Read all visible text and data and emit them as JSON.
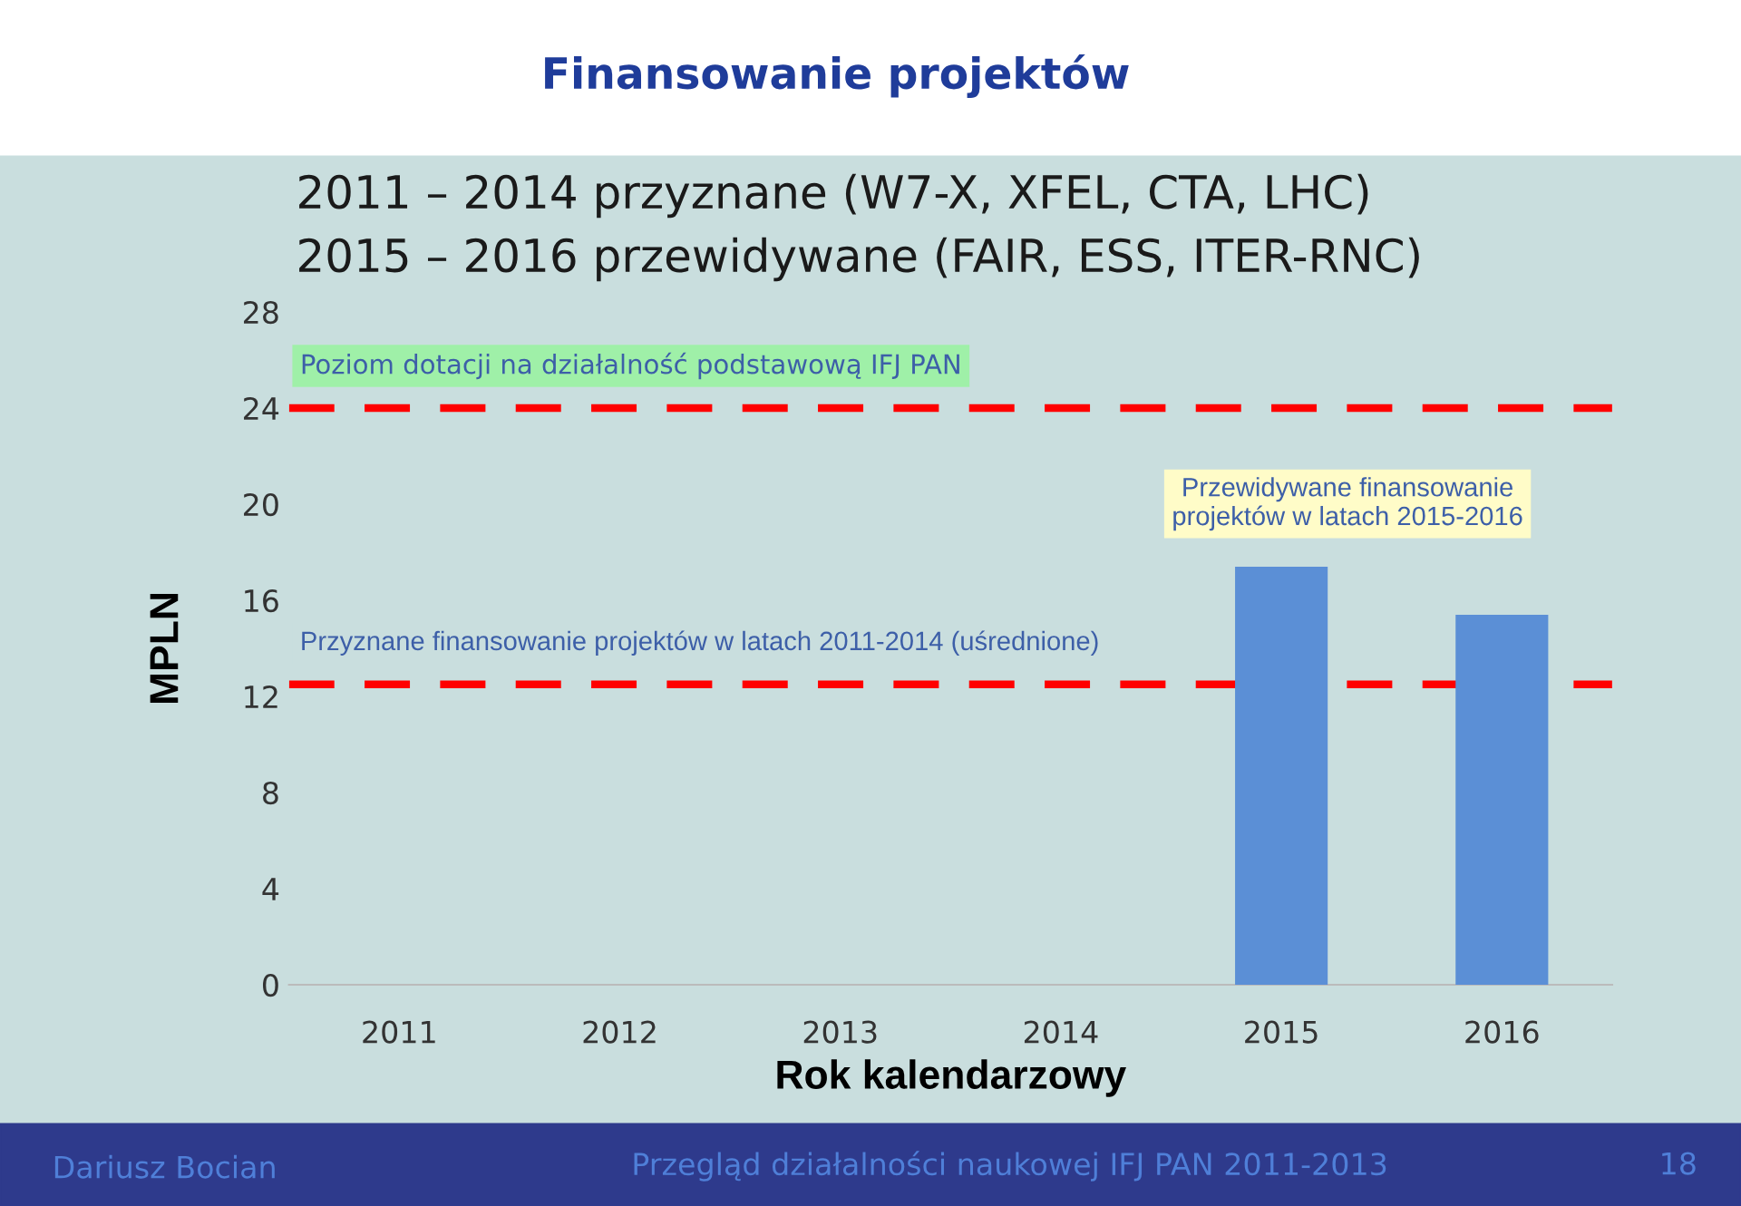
{
  "chart_data": {
    "type": "bar",
    "title": "Finansowanie projektów",
    "categories": [
      "2011",
      "2012",
      "2013",
      "2014",
      "2015",
      "2016"
    ],
    "values": [
      null,
      null,
      null,
      null,
      17.4,
      15.4
    ],
    "color": "#5b8fd6",
    "xlabel": "Rok kalendarzowy",
    "ylabel": "MPLN",
    "ylim": [
      0,
      28
    ],
    "yticks": [
      0,
      4,
      8,
      12,
      16,
      20,
      24,
      28
    ],
    "grid": false,
    "ref_lines": [
      {
        "axis": "y",
        "value": 24,
        "label": "Poziom dotacji na działalność podstawową IFJ PAN",
        "color": "#ff0000",
        "line_style": "dashed"
      },
      {
        "axis": "y",
        "value": 12.5,
        "label": "Przyznane finansowanie projektów w latach 2011-2014 (uśrednione)",
        "color": "#ff0000",
        "line_style": "dashed"
      }
    ],
    "annotations": [
      "2011 – 2014 przyznane (W7-X, XFEL, CTA, LHC)",
      "2015 – 2016 przewidywane (FAIR, ESS, ITER-RNC)",
      {
        "text": "Przewidywane finansowanie\nprojektów w latach 2015-2016",
        "x": "2015",
        "y": 17.4
      },
      "Dariusz Bocian",
      "Przegląd działalności naukowej IFJ PAN 2011-2013",
      "18"
    ]
  }
}
